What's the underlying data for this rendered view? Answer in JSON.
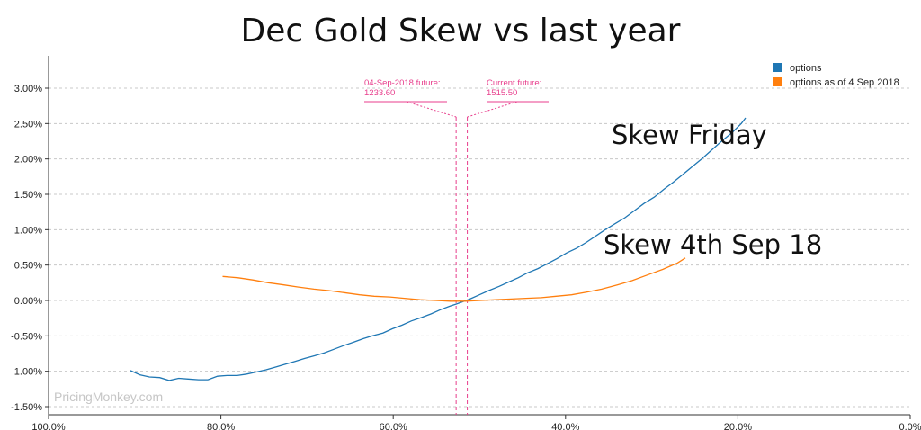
{
  "page": {
    "title": "Dec Gold Skew vs last year"
  },
  "chart_data": {
    "type": "line",
    "title": "Dec Gold Skew vs last year",
    "xlabel": "",
    "ylabel": "",
    "x_reversed": true,
    "xlim": [
      100,
      0
    ],
    "ylim": [
      -1.55,
      3.3
    ],
    "grid": "horizontal dashed",
    "legend_position": "top-right",
    "xticks": [
      "100.0%",
      "80.0%",
      "60.0%",
      "40.0%",
      "20.0%",
      "0.0%"
    ],
    "xtick_values": [
      100,
      80,
      60,
      40,
      20,
      0
    ],
    "yticks": [
      "3.00%",
      "2.50%",
      "2.00%",
      "1.50%",
      "1.00%",
      "0.50%",
      "0.00%",
      "-0.50%",
      "-1.00%",
      "-1.50%"
    ],
    "ytick_values": [
      3.0,
      2.5,
      2.0,
      1.5,
      1.0,
      0.5,
      0.0,
      -0.5,
      -1.0,
      -1.5
    ],
    "series": [
      {
        "name": "options",
        "color": "#1f77b4",
        "x": [
          90.5,
          89.4,
          88.3,
          87.1,
          86.0,
          84.9,
          83.8,
          82.6,
          81.5,
          80.4,
          79.3,
          78.1,
          77.0,
          75.9,
          74.8,
          73.6,
          72.5,
          71.4,
          70.3,
          69.1,
          68.0,
          66.9,
          65.8,
          64.6,
          63.5,
          62.4,
          61.2,
          60.1,
          59.0,
          57.9,
          56.7,
          55.6,
          54.5,
          53.4,
          52.2,
          51.1,
          50.0,
          48.9,
          47.7,
          46.6,
          45.5,
          44.4,
          43.2,
          42.1,
          41.0,
          39.9,
          38.7,
          37.6,
          36.5,
          35.4,
          34.2,
          33.1,
          32.0,
          30.9,
          29.7,
          28.6,
          27.5,
          26.4,
          25.2,
          24.1,
          23.0,
          21.9,
          20.7,
          19.6,
          19.1
        ],
        "y": [
          -0.99,
          -1.05,
          -1.08,
          -1.09,
          -1.13,
          -1.1,
          -1.11,
          -1.12,
          -1.12,
          -1.07,
          -1.06,
          -1.06,
          -1.04,
          -1.01,
          -0.98,
          -0.94,
          -0.9,
          -0.86,
          -0.82,
          -0.78,
          -0.74,
          -0.69,
          -0.64,
          -0.59,
          -0.54,
          -0.5,
          -0.46,
          -0.4,
          -0.35,
          -0.29,
          -0.24,
          -0.19,
          -0.13,
          -0.08,
          -0.03,
          0.02,
          0.08,
          0.14,
          0.2,
          0.26,
          0.32,
          0.39,
          0.45,
          0.52,
          0.59,
          0.67,
          0.74,
          0.82,
          0.91,
          1.0,
          1.09,
          1.17,
          1.27,
          1.37,
          1.46,
          1.57,
          1.67,
          1.78,
          1.9,
          2.01,
          2.13,
          2.25,
          2.37,
          2.5,
          2.58
        ]
      },
      {
        "name": "options as of 4 Sep 2018",
        "color": "#ff7f0e",
        "x": [
          79.8,
          78.0,
          76.3,
          74.5,
          72.7,
          71.0,
          69.2,
          67.5,
          65.7,
          63.9,
          62.2,
          60.4,
          58.7,
          56.9,
          55.1,
          53.4,
          51.6,
          49.9,
          48.1,
          46.3,
          44.6,
          42.8,
          41.1,
          39.3,
          37.5,
          35.8,
          34.0,
          32.3,
          30.5,
          28.7,
          27.0,
          26.1
        ],
        "y": [
          0.34,
          0.32,
          0.29,
          0.25,
          0.22,
          0.19,
          0.16,
          0.14,
          0.11,
          0.08,
          0.06,
          0.05,
          0.03,
          0.01,
          0.0,
          -0.01,
          -0.01,
          0.0,
          0.01,
          0.02,
          0.03,
          0.04,
          0.06,
          0.08,
          0.12,
          0.16,
          0.22,
          0.28,
          0.36,
          0.44,
          0.53,
          0.6
        ]
      }
    ],
    "annotations": {
      "marker_left": {
        "label": "04-Sep-2018 future:",
        "value": "1233.60",
        "x": 52.7
      },
      "marker_right": {
        "label": "Current future:",
        "value": "1515.50",
        "x": 51.4
      },
      "marker_color": "#e83e8c",
      "text_blue": "Skew Friday",
      "text_orange": "Skew 4th Sep 18"
    },
    "watermark": "PricingMonkey.com"
  }
}
